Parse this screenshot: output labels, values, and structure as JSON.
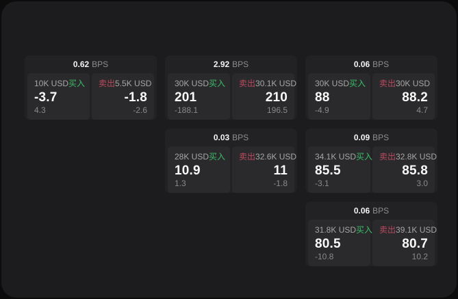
{
  "labels": {
    "bps_unit": "BPS",
    "buy": "买入",
    "sell": "卖出"
  },
  "colors": {
    "buy": "#3bbd68",
    "sell": "#bb4a5f",
    "panel_bg": "#1c1c1e",
    "card_bg": "#222224",
    "pane_bg": "#2a2a2c"
  },
  "cards": [
    {
      "bps": "0.62",
      "buy": {
        "amount": "10K USD",
        "value": "-3.7",
        "delta": "4.3"
      },
      "sell": {
        "amount": "5.5K USD",
        "value": "-1.8",
        "delta": "-2.6"
      }
    },
    {
      "bps": "2.92",
      "buy": {
        "amount": "30K USD",
        "value": "201",
        "delta": "-188.1"
      },
      "sell": {
        "amount": "30.1K USD",
        "value": "210",
        "delta": "196.5"
      }
    },
    {
      "bps": "0.06",
      "buy": {
        "amount": "30K USD",
        "value": "88",
        "delta": "-4.9"
      },
      "sell": {
        "amount": "30K USD",
        "value": "88.2",
        "delta": "4.7"
      }
    },
    {
      "bps": "0.03",
      "buy": {
        "amount": "28K USD",
        "value": "10.9",
        "delta": "1.3"
      },
      "sell": {
        "amount": "32.6K USD",
        "value": "11",
        "delta": "-1.8"
      }
    },
    {
      "bps": "0.09",
      "buy": {
        "amount": "34.1K USD",
        "value": "85.5",
        "delta": "-3.1"
      },
      "sell": {
        "amount": "32.8K USD",
        "value": "85.8",
        "delta": "3.0"
      }
    },
    {
      "bps": "0.06",
      "buy": {
        "amount": "31.8K USD",
        "value": "80.5",
        "delta": "-10.8"
      },
      "sell": {
        "amount": "39.1K USD",
        "value": "80.7",
        "delta": "10.2"
      }
    }
  ]
}
